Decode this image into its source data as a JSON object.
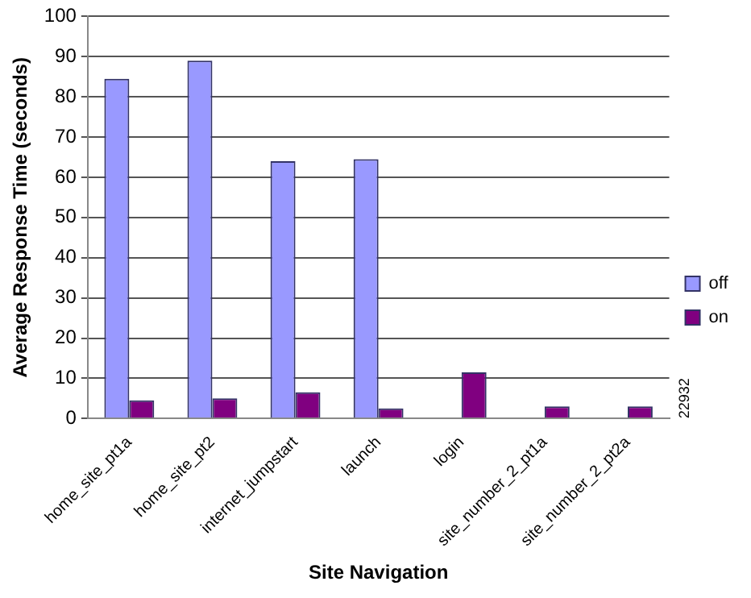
{
  "chart_data": {
    "type": "bar",
    "xlabel": "Site Navigation",
    "ylabel": "Average Response Time (seconds)",
    "categories": [
      "home_site_pt1a",
      "home_site_pt2",
      "internet_jumpstart",
      "launch",
      "login",
      "site_number_2_pt1a",
      "site_number_2_pt2a"
    ],
    "series": [
      {
        "name": "off",
        "color": "#9999ff",
        "values": [
          84.5,
          89,
          64,
          64.5,
          null,
          null,
          null
        ]
      },
      {
        "name": "on",
        "color": "#800080",
        "values": [
          4.5,
          5,
          6.5,
          2.5,
          11.5,
          3,
          3
        ]
      }
    ],
    "ylim": [
      0,
      100
    ],
    "yticks": [
      0,
      10,
      20,
      30,
      40,
      50,
      60,
      70,
      80,
      90,
      100
    ],
    "grid": "y",
    "legend": "right",
    "annotations": [
      "22932"
    ]
  }
}
